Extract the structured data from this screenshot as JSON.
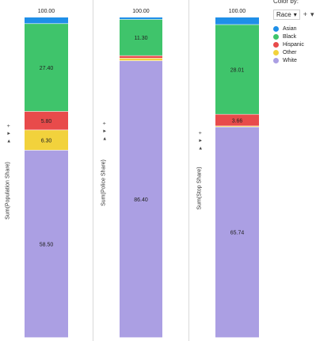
{
  "legend": {
    "title": "Color by:",
    "select_value": "Race",
    "select_caret": "▾",
    "add_label": "+",
    "menu_caret": "▾",
    "items": [
      {
        "label": "Asian",
        "color": "#1f8fe8"
      },
      {
        "label": "Black",
        "color": "#3fc46b"
      },
      {
        "label": "Hispanic",
        "color": "#e84b4b"
      },
      {
        "label": "Other",
        "color": "#f2d23c"
      },
      {
        "label": "White",
        "color": "#ab9fe3"
      }
    ]
  },
  "axis_controls": "▸ ▾ +",
  "chart_data": [
    {
      "type": "bar",
      "stacked": true,
      "ylabel": "Sum(Population Share)",
      "total_label": "100.00",
      "series": [
        {
          "name": "White",
          "value": 58.5,
          "label": "58.50"
        },
        {
          "name": "Other",
          "value": 6.3,
          "label": "6.30"
        },
        {
          "name": "Hispanic",
          "value": 5.8,
          "label": "5.80"
        },
        {
          "name": "Black",
          "value": 27.4,
          "label": "27.40"
        },
        {
          "name": "Asian",
          "value": 2.0,
          "label": ""
        }
      ]
    },
    {
      "type": "bar",
      "stacked": true,
      "ylabel": "Sum(Police Share)",
      "total_label": "100.00",
      "series": [
        {
          "name": "White",
          "value": 86.4,
          "label": "86.40"
        },
        {
          "name": "Other",
          "value": 0.8,
          "label": ""
        },
        {
          "name": "Hispanic",
          "value": 0.8,
          "label": ""
        },
        {
          "name": "Black",
          "value": 11.3,
          "label": "11.30"
        },
        {
          "name": "Asian",
          "value": 0.7,
          "label": ""
        }
      ]
    },
    {
      "type": "bar",
      "stacked": true,
      "ylabel": "Sum(Stop Share)",
      "total_label": "100.00",
      "series": [
        {
          "name": "White",
          "value": 65.74,
          "label": "65.74"
        },
        {
          "name": "Other",
          "value": 0.3,
          "label": ""
        },
        {
          "name": "Hispanic",
          "value": 3.66,
          "label": "3.66"
        },
        {
          "name": "Black",
          "value": 28.01,
          "label": "28.01"
        },
        {
          "name": "Asian",
          "value": 2.29,
          "label": ""
        }
      ]
    }
  ]
}
